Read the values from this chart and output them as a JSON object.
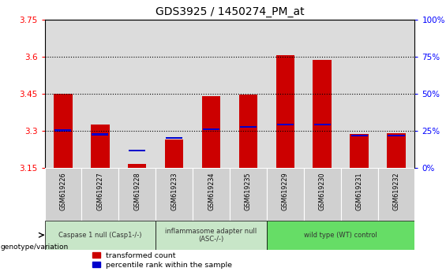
{
  "title": "GDS3925 / 1450274_PM_at",
  "samples": [
    "GSM619226",
    "GSM619227",
    "GSM619228",
    "GSM619233",
    "GSM619234",
    "GSM619235",
    "GSM619229",
    "GSM619230",
    "GSM619231",
    "GSM619232"
  ],
  "red_values": [
    3.45,
    3.325,
    3.165,
    3.265,
    3.44,
    3.445,
    3.605,
    3.585,
    3.285,
    3.29
  ],
  "blue_values": [
    3.3,
    3.285,
    3.22,
    3.27,
    3.305,
    3.315,
    3.325,
    3.325,
    3.28,
    3.28
  ],
  "y_min": 3.15,
  "y_max": 3.75,
  "y_ticks": [
    3.15,
    3.3,
    3.45,
    3.6,
    3.75
  ],
  "y2_ticks": [
    0,
    25,
    50,
    75,
    100
  ],
  "y2_tick_pos": [
    3.15,
    3.3,
    3.45,
    3.6,
    3.75
  ],
  "bar_width": 0.5,
  "base": 3.15,
  "legend_red": "transformed count",
  "legend_blue": "percentile rank within the sample",
  "red_color": "#CC0000",
  "blue_color": "#0000CC",
  "group_defs": [
    {
      "label": "Caspase 1 null (Casp1-/-)",
      "indices": [
        0,
        1,
        2
      ],
      "color": "#C8E6C8"
    },
    {
      "label": "inflammasome adapter null\n(ASC-/-)",
      "indices": [
        3,
        4,
        5
      ],
      "color": "#C8E6C8"
    },
    {
      "label": "wild type (WT) control",
      "indices": [
        6,
        7,
        8,
        9
      ],
      "color": "#66DD66"
    }
  ],
  "genotype_label": "genotype/variation"
}
